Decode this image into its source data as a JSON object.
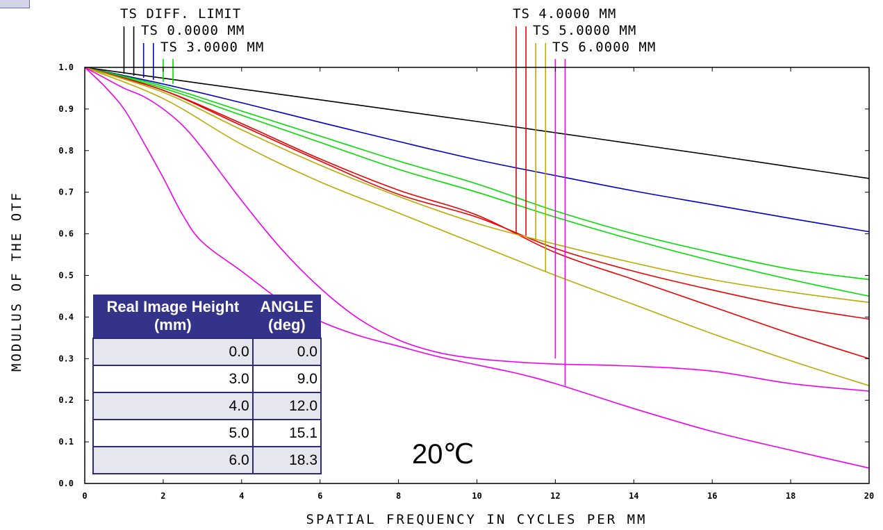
{
  "chart_data": {
    "type": "line",
    "xlabel": "SPATIAL FREQUENCY IN CYCLES PER MM",
    "ylabel": "MODULUS OF THE OTF",
    "xlim": [
      0,
      20
    ],
    "ylim": [
      0,
      1
    ],
    "x_ticks": [
      "0",
      "2",
      "4",
      "6",
      "8",
      "10",
      "12",
      "14",
      "16",
      "18",
      "20"
    ],
    "y_ticks": [
      "0.0",
      "0.1",
      "0.2",
      "0.3",
      "0.4",
      "0.5",
      "0.6",
      "0.7",
      "0.8",
      "0.9",
      "1.0"
    ],
    "annotation": "20℃",
    "legend_labels": [
      {
        "text": "TS DIFF. LIMIT",
        "color": "#000000"
      },
      {
        "text": "TS 0.0000 MM",
        "color": "#0000cc"
      },
      {
        "text": "TS 3.0000 MM",
        "color": "#00dd00"
      },
      {
        "text": "TS 4.0000 MM",
        "color": "#ee0000"
      },
      {
        "text": "TS 5.0000 MM",
        "color": "#bbaa00"
      },
      {
        "text": "TS 6.0000 MM",
        "color": "#ee00ee"
      }
    ],
    "markers": [
      {
        "x": 1.0,
        "y_top": 0.985,
        "color": "#000000"
      },
      {
        "x": 1.25,
        "y_top": 0.98,
        "color": "#000000"
      },
      {
        "x": 1.5,
        "y_top": 0.975,
        "color": "#0000cc"
      },
      {
        "x": 1.75,
        "y_top": 0.97,
        "color": "#0000cc"
      },
      {
        "x": 2.0,
        "y_top": 0.965,
        "color": "#00dd00"
      },
      {
        "x": 2.25,
        "y_top": 0.96,
        "color": "#00dd00"
      },
      {
        "x": 11.0,
        "y_top": 0.6,
        "color": "#ee0000"
      },
      {
        "x": 11.25,
        "y_top": 0.595,
        "color": "#ee0000"
      },
      {
        "x": 11.5,
        "y_top": 0.585,
        "color": "#bbaa00"
      },
      {
        "x": 11.75,
        "y_top": 0.51,
        "color": "#bbaa00"
      },
      {
        "x": 12.0,
        "y_top": 0.3,
        "color": "#ee00ee"
      },
      {
        "x": 12.25,
        "y_top": 0.235,
        "color": "#ee00ee"
      }
    ],
    "series": [
      {
        "color": "#000000",
        "x": [
          0,
          2,
          4,
          6,
          8,
          10,
          12,
          14,
          16,
          18,
          20
        ],
        "y": [
          1.0,
          0.974,
          0.948,
          0.922,
          0.896,
          0.87,
          0.843,
          0.816,
          0.789,
          0.761,
          0.733
        ]
      },
      {
        "color": "#0000cc",
        "x": [
          0,
          2,
          4,
          6,
          8,
          10,
          12,
          14,
          16,
          18,
          20
        ],
        "y": [
          1.0,
          0.96,
          0.915,
          0.868,
          0.822,
          0.778,
          0.74,
          0.703,
          0.67,
          0.637,
          0.605
        ]
      },
      {
        "color": "#00dd00",
        "x": [
          0,
          2,
          4,
          6,
          8,
          10,
          12,
          14,
          16,
          18,
          20
        ],
        "y": [
          1.0,
          0.955,
          0.895,
          0.835,
          0.775,
          0.72,
          0.655,
          0.6,
          0.555,
          0.515,
          0.49
        ]
      },
      {
        "color": "#00dd00",
        "x": [
          0,
          2,
          4,
          6,
          8,
          10,
          12,
          14,
          16,
          18,
          20
        ],
        "y": [
          1.0,
          0.95,
          0.885,
          0.82,
          0.755,
          0.7,
          0.64,
          0.585,
          0.535,
          0.49,
          0.45
        ]
      },
      {
        "color": "#ee0000",
        "x": [
          0,
          2,
          4,
          6,
          8,
          10,
          12,
          14,
          16,
          18,
          20
        ],
        "y": [
          1.0,
          0.945,
          0.86,
          0.775,
          0.695,
          0.64,
          0.565,
          0.51,
          0.465,
          0.425,
          0.395
        ]
      },
      {
        "color": "#ee0000",
        "x": [
          0,
          2,
          4,
          6,
          8,
          10,
          12,
          14,
          16,
          18,
          20
        ],
        "y": [
          1.0,
          0.945,
          0.865,
          0.78,
          0.705,
          0.645,
          0.555,
          0.49,
          0.425,
          0.36,
          0.3
        ]
      },
      {
        "color": "#bbaa00",
        "x": [
          0,
          2,
          4,
          6,
          8,
          10,
          12,
          14,
          16,
          18,
          20
        ],
        "y": [
          1.0,
          0.94,
          0.85,
          0.765,
          0.69,
          0.625,
          0.575,
          0.53,
          0.49,
          0.46,
          0.435
        ]
      },
      {
        "color": "#bbaa00",
        "x": [
          0,
          2,
          4,
          6,
          8,
          10,
          12,
          14,
          16,
          18,
          20
        ],
        "y": [
          1.0,
          0.925,
          0.815,
          0.725,
          0.65,
          0.575,
          0.5,
          0.43,
          0.36,
          0.295,
          0.235
        ]
      },
      {
        "color": "#ee00ee",
        "x": [
          0,
          0.5,
          1,
          1.5,
          2,
          2.5,
          3,
          4,
          5,
          6,
          7,
          8,
          9,
          10,
          11,
          12,
          14,
          16,
          18,
          20
        ],
        "y": [
          1.0,
          0.975,
          0.95,
          0.93,
          0.9,
          0.86,
          0.805,
          0.68,
          0.565,
          0.47,
          0.395,
          0.345,
          0.315,
          0.3,
          0.292,
          0.287,
          0.282,
          0.27,
          0.24,
          0.222
        ]
      },
      {
        "color": "#ee00ee",
        "x": [
          0,
          0.5,
          1,
          1.5,
          2,
          2.5,
          3,
          4,
          5,
          6,
          7,
          8,
          9,
          10,
          11,
          12,
          14,
          16,
          18,
          20
        ],
        "y": [
          1.0,
          0.955,
          0.9,
          0.82,
          0.735,
          0.645,
          0.58,
          0.51,
          0.44,
          0.39,
          0.355,
          0.33,
          0.305,
          0.285,
          0.265,
          0.24,
          0.18,
          0.125,
          0.08,
          0.037
        ]
      }
    ]
  },
  "table": {
    "header": {
      "col1": "Real Image Height (mm)",
      "col2": "ANGLE (deg)"
    },
    "rows": [
      {
        "height": "0.0",
        "angle": "0.0"
      },
      {
        "height": "3.0",
        "angle": "9.0"
      },
      {
        "height": "4.0",
        "angle": "12.0"
      },
      {
        "height": "5.0",
        "angle": "15.1"
      },
      {
        "height": "6.0",
        "angle": "18.3"
      }
    ]
  }
}
